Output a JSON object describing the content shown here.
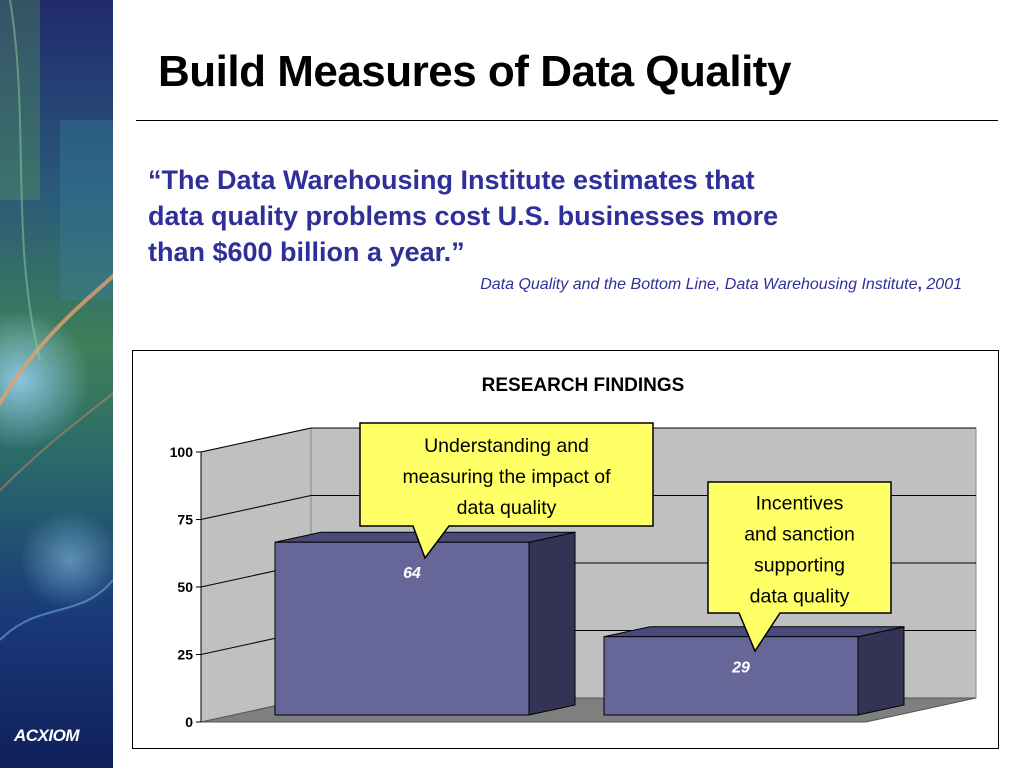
{
  "slide": {
    "title": "Build Measures of Data Quality",
    "quote_line1": "“The Data Warehousing Institute estimates that",
    "quote_line2": "data quality problems cost U.S. businesses more",
    "quote_line3": "than $600 billion a year.”",
    "source_main": "Data Quality and the Bottom Line, Data Warehousing Institute",
    "source_sep": ",",
    "source_year": " 2001",
    "logo_text": "ACXIOM"
  },
  "colors": {
    "quote_text": "#2f2f9a",
    "bar_front": "#666699",
    "bar_side": "#333355",
    "bar_top": "#4a4a7a",
    "wall": "#c0c0c0",
    "floor": "#7f7f7f",
    "callout": "#ffff66"
  },
  "chart_data": {
    "type": "bar",
    "title": "RESEARCH FINDINGS",
    "categories": [
      "Understanding and measuring the impact of data quality",
      "Incentives and sanction supporting data quality"
    ],
    "values": [
      64,
      29
    ],
    "value_labels": [
      "64",
      "29"
    ],
    "ylim": [
      0,
      100
    ],
    "yticks": [
      0,
      25,
      50,
      75,
      100
    ],
    "ytick_labels": [
      "0",
      "25",
      "50",
      "75",
      "100"
    ],
    "grid": true,
    "three_d": true,
    "annotations": [
      {
        "lines": [
          "Understanding and",
          "measuring the impact of",
          "data quality"
        ]
      },
      {
        "lines": [
          "Incentives",
          "and sanction",
          "supporting",
          "data quality"
        ]
      }
    ]
  }
}
